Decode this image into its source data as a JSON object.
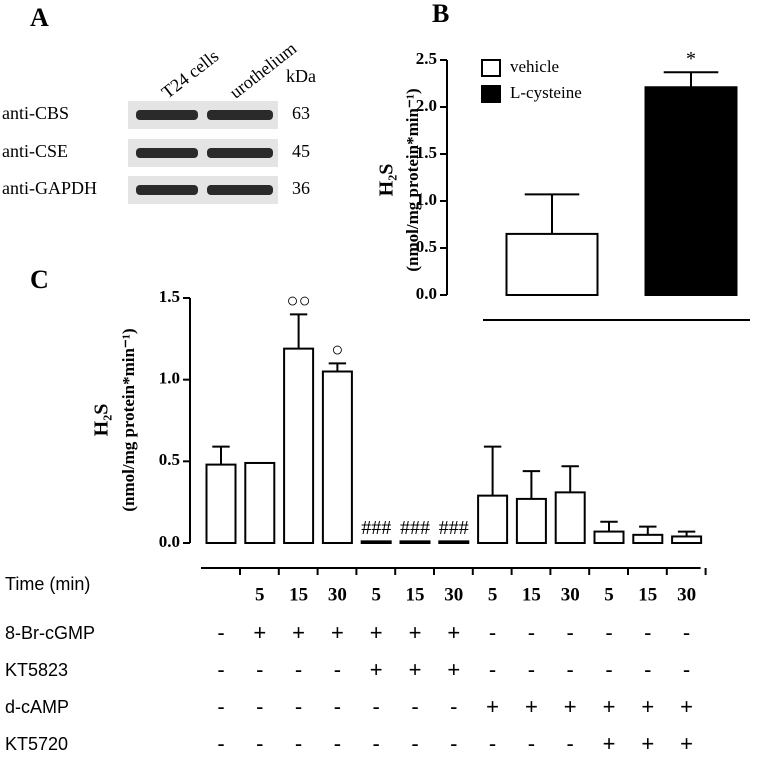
{
  "panel_labels": [
    "A",
    "B",
    "C"
  ],
  "blot": {
    "columns": [
      "T24 cells",
      "urothelium"
    ],
    "size_header": "kDa",
    "rows": [
      {
        "label": "anti-CBS",
        "kda": 63
      },
      {
        "label": "anti-CSE",
        "kda": 45
      },
      {
        "label": "anti-GAPDH",
        "kda": 36
      }
    ]
  },
  "chart_data": [
    {
      "type": "bar",
      "y_label": "H₂S",
      "y_unit_label": "(nmol/mg protein*min⁻¹)",
      "categories": [
        null
      ],
      "series": [
        {
          "name": "vehicle",
          "color": "#ffffff",
          "values": [
            0.65
          ],
          "errors": [
            0.42
          ]
        },
        {
          "name": "L-cysteine",
          "color": "#000000",
          "values": [
            2.21
          ],
          "errors": [
            0.16
          ],
          "annotations": [
            "*"
          ]
        }
      ],
      "ylim": [
        0,
        2.5
      ],
      "yticks": [
        {
          "value": 0,
          "label": "0.0"
        },
        0.5,
        {
          "value": 1,
          "label": "1.0"
        },
        1.5,
        {
          "value": 2,
          "label": "2.0"
        },
        2.5
      ],
      "legend": "upper-left"
    },
    {
      "type": "bar",
      "y_label": "H₂S",
      "y_unit_label": "(nmol/mg protein*min⁻¹)",
      "x_label": "Time (min)",
      "categories": [
        null,
        "5",
        "15",
        "30",
        "5",
        "15",
        "30",
        "5",
        "15",
        "30",
        "5",
        "15",
        "30"
      ],
      "series": [
        {
          "color": "#ffffff",
          "values": [
            0.48,
            0.49,
            1.19,
            1.05,
            0.01,
            0.01,
            0.01,
            0.29,
            0.27,
            0.31,
            0.07,
            0.05,
            0.04
          ],
          "errors": [
            0.11,
            null,
            0.21,
            0.05,
            null,
            null,
            null,
            0.3,
            0.17,
            0.16,
            0.06,
            0.05,
            0.03
          ],
          "annotations": [
            null,
            null,
            "○○",
            "○",
            "###",
            "###",
            "###",
            null,
            null,
            null,
            null,
            null,
            null
          ]
        }
      ],
      "conditions": [
        {
          "name": "8-Br-cGMP",
          "signs": [
            "-",
            "+",
            "+",
            "+",
            "+",
            "+",
            "+",
            "-",
            "-",
            "-",
            "-",
            "-",
            "-"
          ]
        },
        {
          "name": "KT5823",
          "signs": [
            "-",
            "-",
            "-",
            "-",
            "+",
            "+",
            "+",
            "-",
            "-",
            "-",
            "-",
            "-",
            "-"
          ]
        },
        {
          "name": "d-cAMP",
          "signs": [
            "-",
            "-",
            "-",
            "-",
            "-",
            "-",
            "-",
            "+",
            "+",
            "+",
            "+",
            "+",
            "+"
          ]
        },
        {
          "name": "KT5720",
          "signs": [
            "-",
            "-",
            "-",
            "-",
            "-",
            "-",
            "-",
            "-",
            "-",
            "-",
            "+",
            "+",
            "+"
          ]
        }
      ],
      "ylim": [
        0,
        1.5
      ],
      "yticks": [
        {
          "value": 0,
          "label": "0.0"
        },
        0.5,
        {
          "value": 1,
          "label": "1.0"
        },
        1.5
      ]
    }
  ]
}
